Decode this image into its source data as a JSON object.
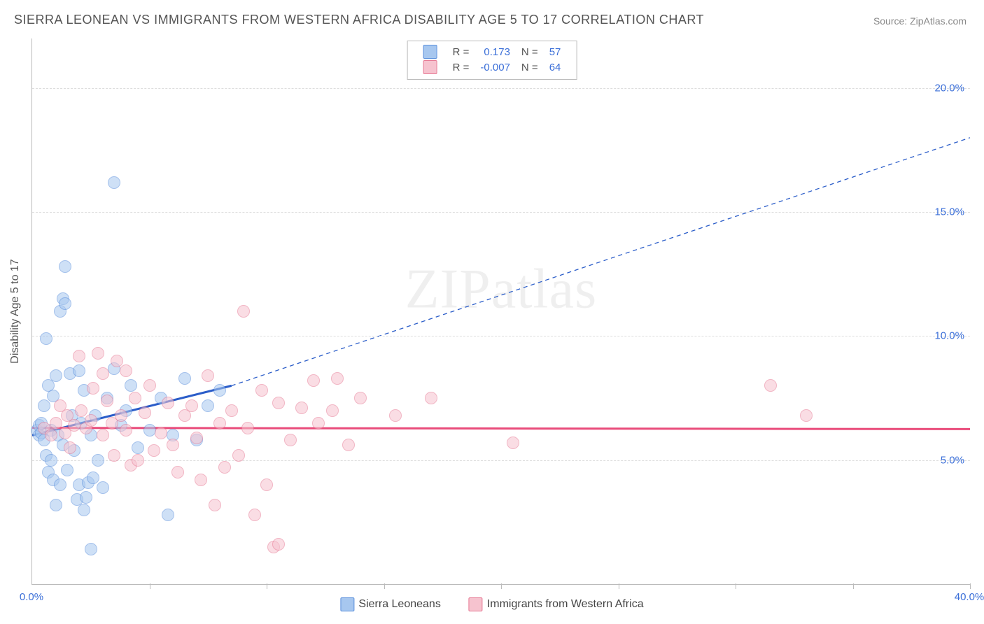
{
  "title": "SIERRA LEONEAN VS IMMIGRANTS FROM WESTERN AFRICA DISABILITY AGE 5 TO 17 CORRELATION CHART",
  "source": "Source: ZipAtlas.com",
  "ylabel": "Disability Age 5 to 17",
  "watermark": "ZIPatlas",
  "chart": {
    "type": "scatter",
    "xlim": [
      0,
      40
    ],
    "ylim": [
      0,
      22
    ],
    "xticks": [
      {
        "v": 0,
        "l": "0.0%"
      },
      {
        "v": 40,
        "l": "40.0%"
      }
    ],
    "yticks": [
      {
        "v": 5,
        "l": "5.0%"
      },
      {
        "v": 10,
        "l": "10.0%"
      },
      {
        "v": 15,
        "l": "15.0%"
      },
      {
        "v": 20,
        "l": "20.0%"
      }
    ],
    "x_gridlines": [
      5,
      10,
      15,
      20,
      25,
      30,
      35,
      40
    ],
    "y_gridlines": [
      5,
      10,
      15,
      20
    ],
    "background_color": "#ffffff",
    "grid_color": "#dddddd",
    "axis_color": "#bbbbbb",
    "tick_label_color": "#3b6fd8",
    "tick_fontsize": 15,
    "marker_radius": 8,
    "marker_opacity": 0.55
  },
  "series": [
    {
      "name": "Sierra Leoneans",
      "color_key": "blue",
      "fill": "#a7c7ef",
      "stroke": "#5a8fdc",
      "R": "0.173",
      "N": "57",
      "trend": {
        "x1": 0,
        "y1": 6.0,
        "x2": 8.5,
        "y2": 8.0,
        "solid_width": 3,
        "extend_to_x": 40,
        "extend_to_y": 18.0,
        "dash": "6,5"
      },
      "points": [
        [
          0.2,
          6.2
        ],
        [
          0.3,
          6.0
        ],
        [
          0.3,
          6.4
        ],
        [
          0.4,
          6.1
        ],
        [
          0.4,
          6.5
        ],
        [
          0.5,
          5.8
        ],
        [
          0.5,
          7.2
        ],
        [
          0.6,
          9.9
        ],
        [
          0.6,
          5.2
        ],
        [
          0.7,
          4.5
        ],
        [
          0.7,
          8.0
        ],
        [
          0.8,
          6.2
        ],
        [
          0.8,
          5.0
        ],
        [
          0.9,
          7.6
        ],
        [
          0.9,
          4.2
        ],
        [
          1.0,
          3.2
        ],
        [
          1.0,
          8.4
        ],
        [
          1.1,
          6.0
        ],
        [
          1.2,
          11.0
        ],
        [
          1.2,
          4.0
        ],
        [
          1.3,
          11.5
        ],
        [
          1.3,
          5.6
        ],
        [
          1.4,
          11.3
        ],
        [
          1.4,
          12.8
        ],
        [
          1.5,
          4.6
        ],
        [
          1.6,
          8.5
        ],
        [
          1.7,
          6.8
        ],
        [
          1.8,
          5.4
        ],
        [
          1.9,
          3.4
        ],
        [
          2.0,
          8.6
        ],
        [
          2.0,
          4.0
        ],
        [
          2.1,
          6.5
        ],
        [
          2.2,
          3.0
        ],
        [
          2.2,
          7.8
        ],
        [
          2.3,
          3.5
        ],
        [
          2.4,
          4.1
        ],
        [
          2.5,
          1.4
        ],
        [
          2.5,
          6.0
        ],
        [
          2.6,
          4.3
        ],
        [
          2.7,
          6.8
        ],
        [
          2.8,
          5.0
        ],
        [
          3.0,
          3.9
        ],
        [
          3.2,
          7.5
        ],
        [
          3.5,
          16.2
        ],
        [
          3.5,
          8.7
        ],
        [
          3.8,
          6.4
        ],
        [
          4.0,
          7.0
        ],
        [
          4.2,
          8.0
        ],
        [
          4.5,
          5.5
        ],
        [
          5.0,
          6.2
        ],
        [
          5.5,
          7.5
        ],
        [
          5.8,
          2.8
        ],
        [
          6.0,
          6.0
        ],
        [
          6.5,
          8.3
        ],
        [
          7.0,
          5.8
        ],
        [
          7.5,
          7.2
        ],
        [
          8.0,
          7.8
        ]
      ]
    },
    {
      "name": "Immigrants from Western Africa",
      "color_key": "pink",
      "fill": "#f6c3cf",
      "stroke": "#e77a95",
      "R": "-0.007",
      "N": "64",
      "trend": {
        "x1": 0,
        "y1": 6.3,
        "x2": 40,
        "y2": 6.25,
        "solid_width": 3
      },
      "points": [
        [
          0.5,
          6.3
        ],
        [
          0.8,
          6.0
        ],
        [
          1.0,
          6.5
        ],
        [
          1.2,
          7.2
        ],
        [
          1.4,
          6.1
        ],
        [
          1.5,
          6.8
        ],
        [
          1.6,
          5.5
        ],
        [
          1.8,
          6.4
        ],
        [
          2.0,
          9.2
        ],
        [
          2.1,
          7.0
        ],
        [
          2.3,
          6.3
        ],
        [
          2.5,
          6.6
        ],
        [
          2.6,
          7.9
        ],
        [
          2.8,
          9.3
        ],
        [
          3.0,
          6.0
        ],
        [
          3.0,
          8.5
        ],
        [
          3.2,
          7.4
        ],
        [
          3.4,
          6.5
        ],
        [
          3.5,
          5.2
        ],
        [
          3.6,
          9.0
        ],
        [
          3.8,
          6.8
        ],
        [
          4.0,
          8.6
        ],
        [
          4.0,
          6.2
        ],
        [
          4.2,
          4.8
        ],
        [
          4.4,
          7.5
        ],
        [
          4.5,
          5.0
        ],
        [
          4.8,
          6.9
        ],
        [
          5.0,
          8.0
        ],
        [
          5.2,
          5.4
        ],
        [
          5.5,
          6.1
        ],
        [
          5.8,
          7.3
        ],
        [
          6.0,
          5.6
        ],
        [
          6.2,
          4.5
        ],
        [
          6.5,
          6.8
        ],
        [
          6.8,
          7.2
        ],
        [
          7.0,
          5.9
        ],
        [
          7.2,
          4.2
        ],
        [
          7.5,
          8.4
        ],
        [
          7.8,
          3.2
        ],
        [
          8.0,
          6.5
        ],
        [
          8.2,
          4.7
        ],
        [
          8.5,
          7.0
        ],
        [
          8.8,
          5.2
        ],
        [
          9.0,
          11.0
        ],
        [
          9.2,
          6.3
        ],
        [
          9.5,
          2.8
        ],
        [
          9.8,
          7.8
        ],
        [
          10.0,
          4.0
        ],
        [
          10.3,
          1.5
        ],
        [
          10.5,
          1.6
        ],
        [
          10.5,
          7.3
        ],
        [
          11.0,
          5.8
        ],
        [
          11.5,
          7.1
        ],
        [
          12.0,
          8.2
        ],
        [
          12.2,
          6.5
        ],
        [
          12.8,
          7.0
        ],
        [
          13.0,
          8.3
        ],
        [
          13.5,
          5.6
        ],
        [
          14.0,
          7.5
        ],
        [
          15.5,
          6.8
        ],
        [
          17.0,
          7.5
        ],
        [
          20.5,
          5.7
        ],
        [
          31.5,
          8.0
        ],
        [
          33.0,
          6.8
        ]
      ]
    }
  ],
  "stat_box": {
    "rows": [
      {
        "swatch": "blue",
        "R_label": "R =",
        "R": "0.173",
        "N_label": "N =",
        "N": "57"
      },
      {
        "swatch": "pink",
        "R_label": "R =",
        "R": "-0.007",
        "N_label": "N =",
        "N": "64"
      }
    ]
  },
  "legend": [
    {
      "swatch": "blue",
      "label": "Sierra Leoneans"
    },
    {
      "swatch": "pink",
      "label": "Immigrants from Western Africa"
    }
  ]
}
